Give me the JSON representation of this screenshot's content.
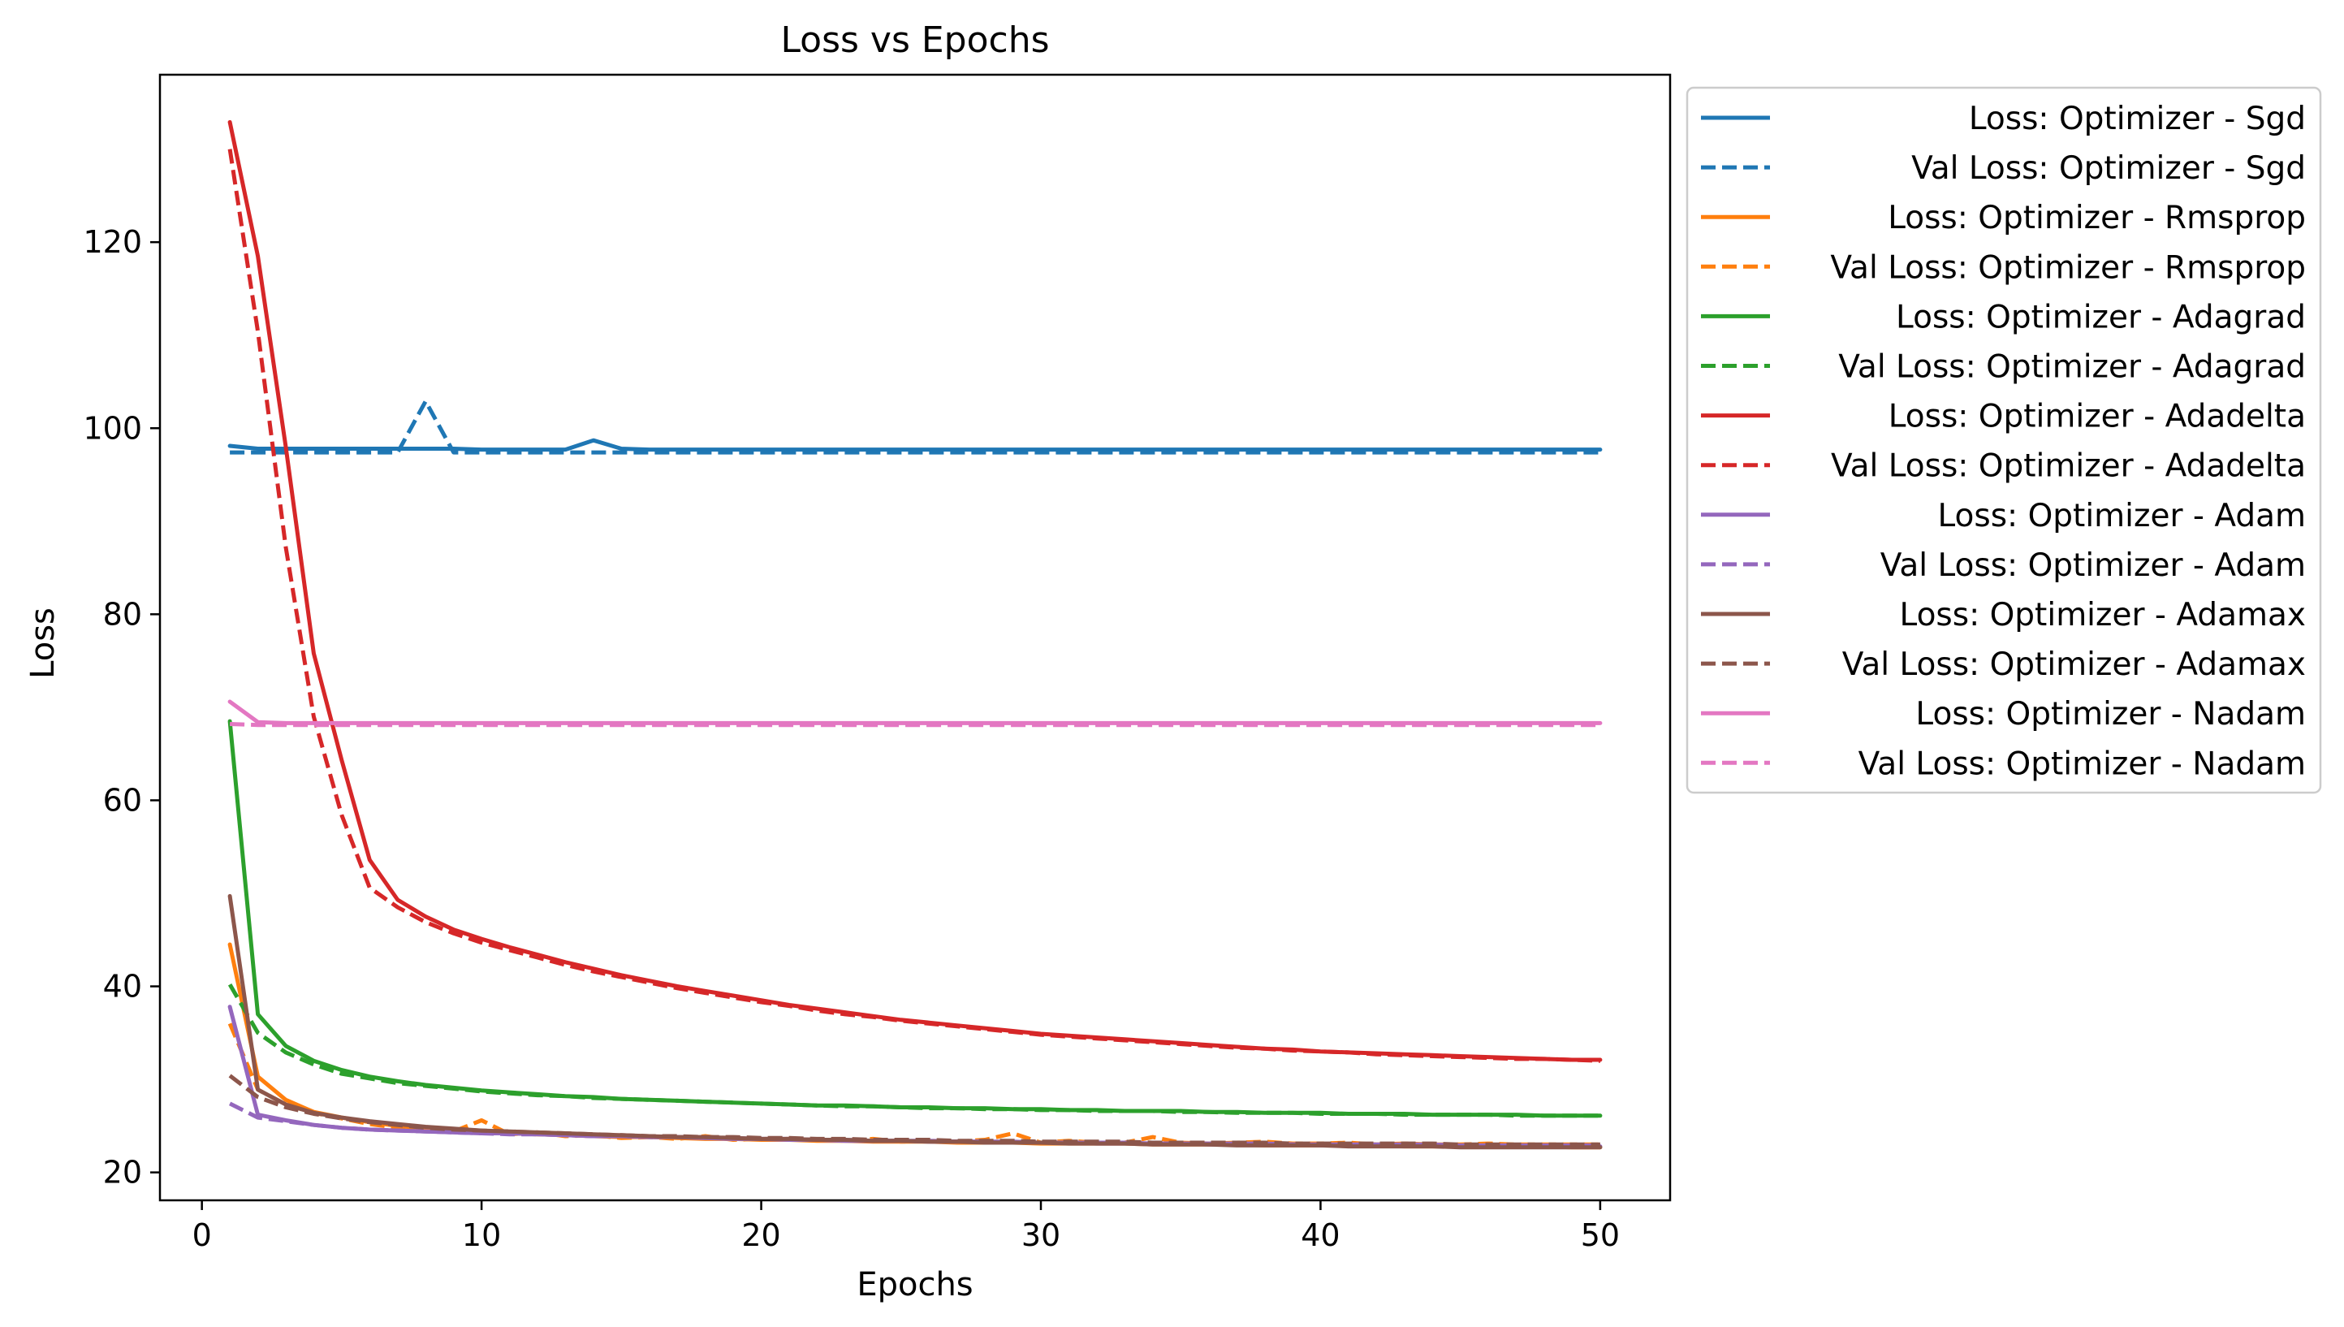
{
  "chart_data": {
    "type": "line",
    "title": "Loss vs Epochs",
    "xlabel": "Epochs",
    "ylabel": "Loss",
    "xlim": [
      -1.5,
      52.5
    ],
    "ylim": [
      17,
      138
    ],
    "xticks": [
      0,
      10,
      20,
      30,
      40,
      50
    ],
    "yticks": [
      20,
      40,
      60,
      80,
      100,
      120
    ],
    "x": [
      1,
      2,
      3,
      4,
      5,
      6,
      7,
      8,
      9,
      10,
      11,
      12,
      13,
      14,
      15,
      16,
      17,
      18,
      19,
      20,
      21,
      22,
      23,
      24,
      25,
      26,
      27,
      28,
      29,
      30,
      31,
      32,
      33,
      34,
      35,
      36,
      37,
      38,
      39,
      40,
      41,
      42,
      43,
      44,
      45,
      46,
      47,
      48,
      49,
      50
    ],
    "grid": false,
    "legend_position": "outside-right",
    "series": [
      {
        "name": "Loss: Optimizer - Sgd",
        "color": "#1f77b4",
        "dashed": false,
        "values": [
          98.1,
          97.8,
          97.8,
          97.8,
          97.8,
          97.8,
          97.8,
          97.8,
          97.8,
          97.7,
          97.7,
          97.7,
          97.7,
          98.7,
          97.8,
          97.7,
          97.7,
          97.7,
          97.7,
          97.7,
          97.7,
          97.7,
          97.7,
          97.7,
          97.7,
          97.7,
          97.7,
          97.7,
          97.7,
          97.7,
          97.7,
          97.7,
          97.7,
          97.7,
          97.7,
          97.7,
          97.7,
          97.7,
          97.7,
          97.7,
          97.7,
          97.7,
          97.7,
          97.7,
          97.7,
          97.7,
          97.7,
          97.7,
          97.7,
          97.7
        ]
      },
      {
        "name": "Val Loss: Optimizer - Sgd",
        "color": "#1f77b4",
        "dashed": true,
        "values": [
          97.4,
          97.4,
          97.4,
          97.4,
          97.4,
          97.4,
          97.4,
          102.9,
          97.4,
          97.4,
          97.4,
          97.4,
          97.4,
          97.4,
          97.4,
          97.4,
          97.4,
          97.4,
          97.4,
          97.4,
          97.4,
          97.4,
          97.4,
          97.4,
          97.4,
          97.4,
          97.4,
          97.4,
          97.4,
          97.4,
          97.4,
          97.4,
          97.4,
          97.4,
          97.4,
          97.4,
          97.4,
          97.4,
          97.4,
          97.4,
          97.4,
          97.4,
          97.4,
          97.4,
          97.4,
          97.4,
          97.4,
          97.4,
          97.4,
          97.4
        ]
      },
      {
        "name": "Loss: Optimizer - Rmsprop",
        "color": "#ff7f0e",
        "dashed": false,
        "values": [
          44.5,
          30.3,
          27.8,
          26.5,
          25.9,
          25.4,
          25.0,
          24.7,
          24.5,
          24.3,
          24.2,
          24.1,
          24.0,
          23.9,
          23.8,
          23.8,
          23.7,
          23.6,
          23.6,
          23.5,
          23.5,
          23.4,
          23.4,
          23.3,
          23.3,
          23.3,
          23.2,
          23.2,
          23.2,
          23.1,
          23.1,
          23.1,
          23.1,
          23.0,
          23.0,
          23.0,
          23.0,
          22.9,
          22.9,
          22.9,
          22.9,
          22.9,
          22.8,
          22.8,
          22.8,
          22.8,
          22.8,
          22.8,
          22.7,
          22.7
        ]
      },
      {
        "name": "Val Loss: Optimizer - Rmsprop",
        "color": "#ff7f0e",
        "dashed": true,
        "values": [
          36.0,
          28.9,
          27.3,
          26.4,
          25.8,
          25.2,
          24.8,
          24.6,
          24.4,
          25.6,
          24.1,
          24.3,
          23.9,
          24.0,
          23.7,
          23.8,
          23.6,
          23.9,
          23.5,
          23.6,
          23.6,
          23.5,
          23.4,
          23.6,
          23.3,
          23.4,
          23.3,
          23.5,
          24.2,
          23.2,
          23.4,
          23.2,
          23.2,
          23.8,
          23.2,
          23.1,
          23.2,
          23.3,
          23.1,
          23.1,
          23.2,
          23.0,
          23.1,
          23.0,
          23.0,
          23.1,
          23.0,
          23.0,
          23.0,
          23.0
        ]
      },
      {
        "name": "Loss: Optimizer - Adagrad",
        "color": "#2ca02c",
        "dashed": false,
        "values": [
          68.5,
          37.0,
          33.6,
          32.0,
          31.0,
          30.3,
          29.8,
          29.4,
          29.1,
          28.8,
          28.6,
          28.4,
          28.2,
          28.1,
          27.9,
          27.8,
          27.7,
          27.6,
          27.5,
          27.4,
          27.3,
          27.2,
          27.2,
          27.1,
          27.0,
          27.0,
          26.9,
          26.9,
          26.8,
          26.8,
          26.7,
          26.7,
          26.6,
          26.6,
          26.6,
          26.5,
          26.5,
          26.4,
          26.4,
          26.4,
          26.3,
          26.3,
          26.3,
          26.2,
          26.2,
          26.2,
          26.2,
          26.1,
          26.1,
          26.1
        ]
      },
      {
        "name": "Val Loss: Optimizer - Adagrad",
        "color": "#2ca02c",
        "dashed": true,
        "values": [
          40.2,
          35.0,
          32.9,
          31.6,
          30.6,
          30.1,
          29.6,
          29.3,
          29.0,
          28.7,
          28.5,
          28.3,
          28.2,
          28.0,
          27.9,
          27.8,
          27.7,
          27.6,
          27.5,
          27.4,
          27.3,
          27.2,
          27.1,
          27.1,
          27.0,
          26.9,
          26.9,
          26.8,
          26.8,
          26.7,
          26.7,
          26.6,
          26.6,
          26.6,
          26.5,
          26.5,
          26.4,
          26.4,
          26.4,
          26.3,
          26.3,
          26.3,
          26.2,
          26.2,
          26.2,
          26.2,
          26.1,
          26.1,
          26.1,
          26.1
        ]
      },
      {
        "name": "Loss: Optimizer - Adadelta",
        "color": "#d62728",
        "dashed": false,
        "values": [
          132.9,
          118.5,
          98.0,
          75.8,
          64.3,
          53.6,
          49.3,
          47.5,
          46.1,
          45.1,
          44.2,
          43.4,
          42.6,
          41.9,
          41.2,
          40.6,
          40.0,
          39.5,
          39.0,
          38.5,
          38.0,
          37.6,
          37.2,
          36.8,
          36.4,
          36.1,
          35.8,
          35.5,
          35.2,
          34.9,
          34.7,
          34.5,
          34.3,
          34.1,
          33.9,
          33.7,
          33.5,
          33.3,
          33.2,
          33.0,
          32.9,
          32.8,
          32.7,
          32.6,
          32.5,
          32.4,
          32.3,
          32.2,
          32.1,
          32.1
        ]
      },
      {
        "name": "Val Loss: Optimizer - Adadelta",
        "color": "#d62728",
        "dashed": true,
        "values": [
          130.0,
          110.4,
          87.2,
          69.0,
          58.4,
          50.6,
          48.5,
          46.9,
          45.7,
          44.7,
          43.9,
          43.1,
          42.3,
          41.6,
          41.0,
          40.4,
          39.8,
          39.3,
          38.8,
          38.3,
          37.9,
          37.4,
          37.0,
          36.7,
          36.3,
          36.0,
          35.7,
          35.4,
          35.1,
          34.8,
          34.6,
          34.4,
          34.2,
          34.0,
          33.8,
          33.6,
          33.4,
          33.3,
          33.1,
          33.0,
          32.9,
          32.7,
          32.6,
          32.5,
          32.4,
          32.3,
          32.2,
          32.2,
          32.1,
          32.0
        ]
      },
      {
        "name": "Loss: Optimizer - Adam",
        "color": "#9467bd",
        "dashed": false,
        "values": [
          37.8,
          26.2,
          25.6,
          25.1,
          24.8,
          24.6,
          24.5,
          24.4,
          24.3,
          24.2,
          24.2,
          24.1,
          24.0,
          23.9,
          23.9,
          23.8,
          23.8,
          23.7,
          23.6,
          23.6,
          23.5,
          23.5,
          23.4,
          23.4,
          23.4,
          23.3,
          23.3,
          23.3,
          23.2,
          23.2,
          23.2,
          23.1,
          23.1,
          23.1,
          23.1,
          23.0,
          23.0,
          23.0,
          23.0,
          22.9,
          22.9,
          22.9,
          22.9,
          22.9,
          22.8,
          22.8,
          22.8,
          22.8,
          22.8,
          22.8
        ]
      },
      {
        "name": "Val Loss: Optimizer - Adam",
        "color": "#9467bd",
        "dashed": true,
        "values": [
          27.4,
          25.9,
          25.5,
          25.1,
          24.8,
          24.6,
          24.5,
          24.4,
          24.3,
          24.2,
          24.1,
          24.1,
          24.0,
          23.9,
          23.9,
          23.8,
          23.8,
          23.7,
          23.7,
          23.6,
          23.6,
          23.5,
          23.5,
          23.4,
          23.4,
          23.4,
          23.3,
          23.3,
          23.3,
          23.2,
          23.2,
          23.2,
          23.2,
          23.1,
          23.1,
          23.1,
          23.1,
          23.1,
          23.0,
          23.0,
          23.0,
          23.0,
          23.0,
          23.0,
          22.9,
          22.9,
          22.9,
          22.9,
          22.9,
          22.9
        ]
      },
      {
        "name": "Loss: Optimizer - Adamax",
        "color": "#8c564b",
        "dashed": false,
        "values": [
          49.7,
          28.9,
          27.3,
          26.4,
          25.9,
          25.5,
          25.2,
          24.9,
          24.7,
          24.5,
          24.4,
          24.3,
          24.2,
          24.1,
          24.0,
          23.9,
          23.8,
          23.8,
          23.7,
          23.6,
          23.6,
          23.5,
          23.5,
          23.4,
          23.4,
          23.3,
          23.3,
          23.2,
          23.2,
          23.2,
          23.1,
          23.1,
          23.1,
          23.0,
          23.0,
          23.0,
          22.9,
          22.9,
          22.9,
          22.9,
          22.8,
          22.8,
          22.8,
          22.8,
          22.7,
          22.7,
          22.7,
          22.7,
          22.7,
          22.7
        ]
      },
      {
        "name": "Val Loss: Optimizer - Adamax",
        "color": "#8c564b",
        "dashed": true,
        "values": [
          30.4,
          28.1,
          27.0,
          26.3,
          25.8,
          25.4,
          25.1,
          24.8,
          24.6,
          24.5,
          24.4,
          24.3,
          24.2,
          24.1,
          24.0,
          23.9,
          23.9,
          23.8,
          23.8,
          23.7,
          23.7,
          23.6,
          23.6,
          23.5,
          23.5,
          23.5,
          23.4,
          23.4,
          23.4,
          23.3,
          23.3,
          23.3,
          23.3,
          23.2,
          23.2,
          23.2,
          23.2,
          23.2,
          23.1,
          23.1,
          23.1,
          23.1,
          23.1,
          23.1,
          23.0,
          23.0,
          23.0,
          23.0,
          23.0,
          23.0
        ]
      },
      {
        "name": "Loss: Optimizer - Nadam",
        "color": "#e377c2",
        "dashed": false,
        "values": [
          70.6,
          68.4,
          68.3,
          68.3,
          68.3,
          68.3,
          68.3,
          68.3,
          68.3,
          68.3,
          68.3,
          68.3,
          68.3,
          68.3,
          68.3,
          68.3,
          68.3,
          68.3,
          68.3,
          68.3,
          68.3,
          68.3,
          68.3,
          68.3,
          68.3,
          68.3,
          68.3,
          68.3,
          68.3,
          68.3,
          68.3,
          68.3,
          68.3,
          68.3,
          68.3,
          68.3,
          68.3,
          68.3,
          68.3,
          68.3,
          68.3,
          68.3,
          68.3,
          68.3,
          68.3,
          68.3,
          68.3,
          68.3,
          68.3,
          68.3
        ]
      },
      {
        "name": "Val Loss: Optimizer - Nadam",
        "color": "#e377c2",
        "dashed": true,
        "values": [
          68.2,
          68.1,
          68.1,
          68.1,
          68.1,
          68.1,
          68.1,
          68.1,
          68.1,
          68.1,
          68.1,
          68.1,
          68.1,
          68.1,
          68.1,
          68.1,
          68.1,
          68.1,
          68.1,
          68.1,
          68.1,
          68.1,
          68.1,
          68.1,
          68.1,
          68.1,
          68.1,
          68.1,
          68.1,
          68.1,
          68.1,
          68.1,
          68.1,
          68.1,
          68.1,
          68.1,
          68.1,
          68.1,
          68.1,
          68.1,
          68.1,
          68.1,
          68.1,
          68.1,
          68.1,
          68.1,
          68.1,
          68.1,
          68.1,
          68.1
        ]
      }
    ]
  }
}
